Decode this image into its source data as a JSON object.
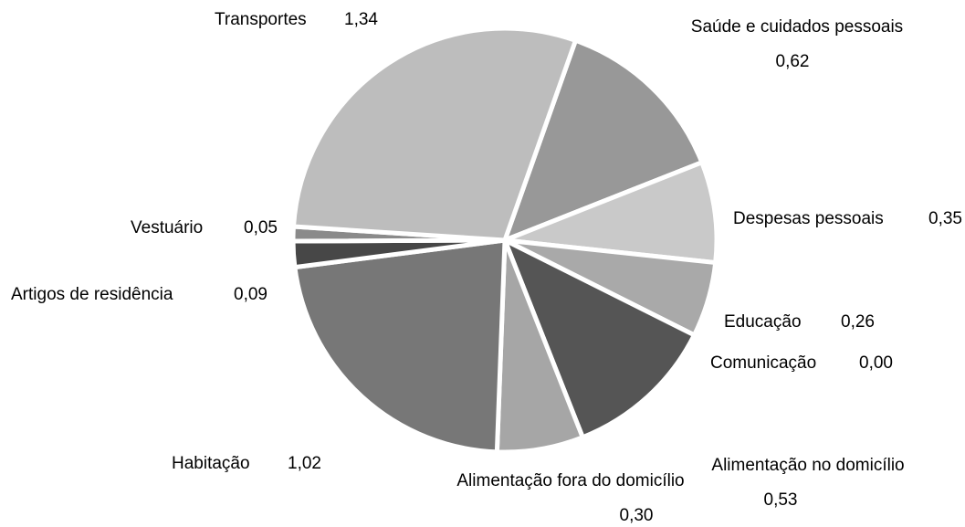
{
  "chart_data": {
    "type": "pie",
    "categories": [
      "Saúde e cuidados pessoais",
      "Despesas pessoais",
      "Educação",
      "Comunicação",
      "Alimentação no domicílio",
      "Alimentação fora do domicílio",
      "Habitação",
      "Artigos de residência",
      "Vestuário",
      "Transportes"
    ],
    "values": [
      0.62,
      0.35,
      0.26,
      0.0,
      0.53,
      0.3,
      1.02,
      0.09,
      0.05,
      1.34
    ],
    "value_labels": [
      "0,62",
      "0,35",
      "0,26",
      "0,00",
      "0,53",
      "0,30",
      "1,02",
      "0,09",
      "0,05",
      "1,34"
    ],
    "colors": [
      "#989898",
      "#c9c9c9",
      "#a9a9a9",
      "#787878",
      "#555555",
      "#a6a6a6",
      "#777777",
      "#474747",
      "#8a8a8a",
      "#bdbdbd"
    ]
  }
}
